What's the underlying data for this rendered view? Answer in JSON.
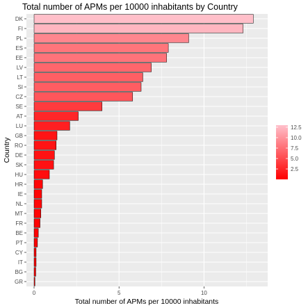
{
  "chart_data": {
    "type": "bar",
    "orientation": "horizontal",
    "title": "Total number of APMs per 10000 inhabitants by Country",
    "xlabel": "Total number of APMs per 10000 inhabitants",
    "ylabel": "Country",
    "xlim": [
      0,
      13.5
    ],
    "xticks": [
      0,
      5,
      10
    ],
    "grid": true,
    "categories": [
      "DK",
      "FI",
      "PL",
      "ES",
      "EE",
      "LV",
      "LT",
      "SI",
      "CZ",
      "SE",
      "AT",
      "LU",
      "GB",
      "RO",
      "DE",
      "SK",
      "HU",
      "HR",
      "IE",
      "NL",
      "MT",
      "FR",
      "BE",
      "PT",
      "CY",
      "IT",
      "BG",
      "GR"
    ],
    "values": [
      12.9,
      12.3,
      9.1,
      7.9,
      7.8,
      6.9,
      6.4,
      6.3,
      5.8,
      4.0,
      2.6,
      2.1,
      1.35,
      1.3,
      1.2,
      1.15,
      0.9,
      0.5,
      0.45,
      0.45,
      0.4,
      0.35,
      0.25,
      0.2,
      0.12,
      0.12,
      0.1,
      0.05
    ],
    "legend": {
      "position": "right",
      "type": "colorbar",
      "ticks": [
        "12.5",
        "10.0",
        "7.5",
        "5.0",
        "2.5"
      ],
      "tick_values": [
        12.5,
        10.0,
        7.5,
        5.0,
        2.5
      ],
      "range": [
        0,
        13.0
      ],
      "color_low": "#ff0000",
      "color_high": "#ffc0cb"
    },
    "colors": {
      "panel": "#ebebeb",
      "grid": "#ffffff",
      "bar_outline": "#000000"
    }
  }
}
